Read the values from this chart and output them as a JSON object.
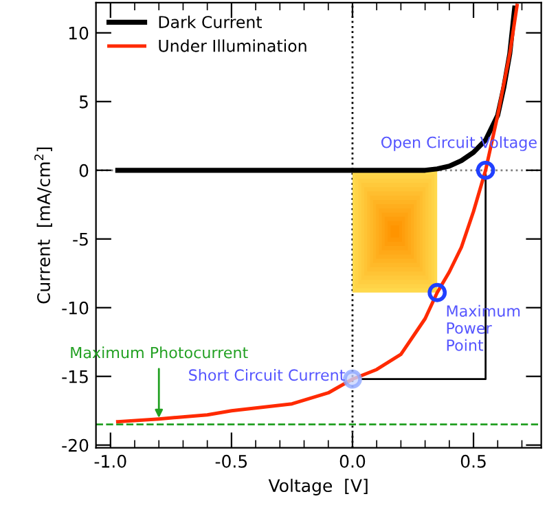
{
  "chart_data": {
    "type": "line",
    "xlabel": "Voltage  [V]",
    "ylabel": "Current  [mA/cm$^{2}$]",
    "series": [
      {
        "name": "Dark Current",
        "color": "#000000",
        "x": [
          -0.97,
          -0.5,
          0.0,
          0.2,
          0.3,
          0.35,
          0.4,
          0.45,
          0.5,
          0.55,
          0.6,
          0.625,
          0.65,
          0.67
        ],
        "values": [
          0,
          0,
          0,
          0,
          0,
          0.1,
          0.3,
          0.7,
          1.3,
          2.2,
          4,
          6,
          8.5,
          11.8
        ]
      },
      {
        "name": "Under Illumination",
        "color": "#ff2a00",
        "x": [
          -0.97,
          -0.8,
          -0.6,
          -0.5,
          -0.25,
          -0.1,
          0.0,
          0.1,
          0.2,
          0.3,
          0.35,
          0.4,
          0.45,
          0.5,
          0.55,
          0.6,
          0.65,
          0.68
        ],
        "values": [
          -18.3,
          -18.1,
          -17.8,
          -17.5,
          -17.0,
          -16.2,
          -15.2,
          -14.5,
          -13.4,
          -10.8,
          -8.9,
          -7.4,
          -5.6,
          -3.0,
          0,
          4,
          8.5,
          12
        ]
      },
      {
        "color": "#000000",
        "x": [
          0.04,
          0.55,
          0.55
        ],
        "values": [
          -15.2,
          -15.2,
          0
        ]
      }
    ],
    "annotations": [
      {
        "text": "Open Circuit Voltage",
        "x": 0.55,
        "y": 0
      },
      {
        "text": "Maximum\nPower\nPoint",
        "x": 0.35,
        "y": -8.9
      },
      {
        "text": "Short Circuit Current",
        "x": 0,
        "y": -15.2
      },
      {
        "text": "Maximum Photocurrent",
        "x": -0.8,
        "y": -18.5
      }
    ],
    "ref_lines": [
      {
        "axis": "x",
        "value": 0,
        "color": "#000000",
        "line_style": "dotted"
      },
      {
        "axis": "y",
        "value": 0,
        "color": "#808080",
        "line_style": "dotted"
      },
      {
        "axis": "y",
        "value": -18.5,
        "color": "#22a022",
        "line_style": "dashed"
      }
    ],
    "xlim": [
      -1.06,
      0.78
    ],
    "ylim": [
      -20.2,
      12.2
    ],
    "xticks": [
      {
        "value": -1.0,
        "label": "-1.0"
      },
      {
        "value": -0.9,
        "label": null
      },
      {
        "value": -0.8,
        "label": null
      },
      {
        "value": -0.7,
        "label": null
      },
      {
        "value": -0.6,
        "label": null
      },
      {
        "value": -0.5,
        "label": "-0.5"
      },
      {
        "value": -0.4,
        "label": null
      },
      {
        "value": -0.3,
        "label": null
      },
      {
        "value": -0.2,
        "label": null
      },
      {
        "value": -0.1,
        "label": null
      },
      {
        "value": 0.0,
        "label": "0.0"
      },
      {
        "value": 0.1,
        "label": null
      },
      {
        "value": 0.2,
        "label": null
      },
      {
        "value": 0.3,
        "label": null
      },
      {
        "value": 0.4,
        "label": null
      },
      {
        "value": 0.5,
        "label": "0.5"
      },
      {
        "value": 0.6,
        "label": null
      },
      {
        "value": 0.7,
        "label": null
      }
    ],
    "yticks": [
      {
        "value": -20,
        "label": "-20"
      },
      {
        "value": -15,
        "label": "-15"
      },
      {
        "value": -10,
        "label": "-10"
      },
      {
        "value": -5,
        "label": "-5"
      },
      0,
      5,
      10
    ],
    "legend": "top left",
    "grid": false,
    "marker": "none",
    "line_style": "solid"
  }
}
